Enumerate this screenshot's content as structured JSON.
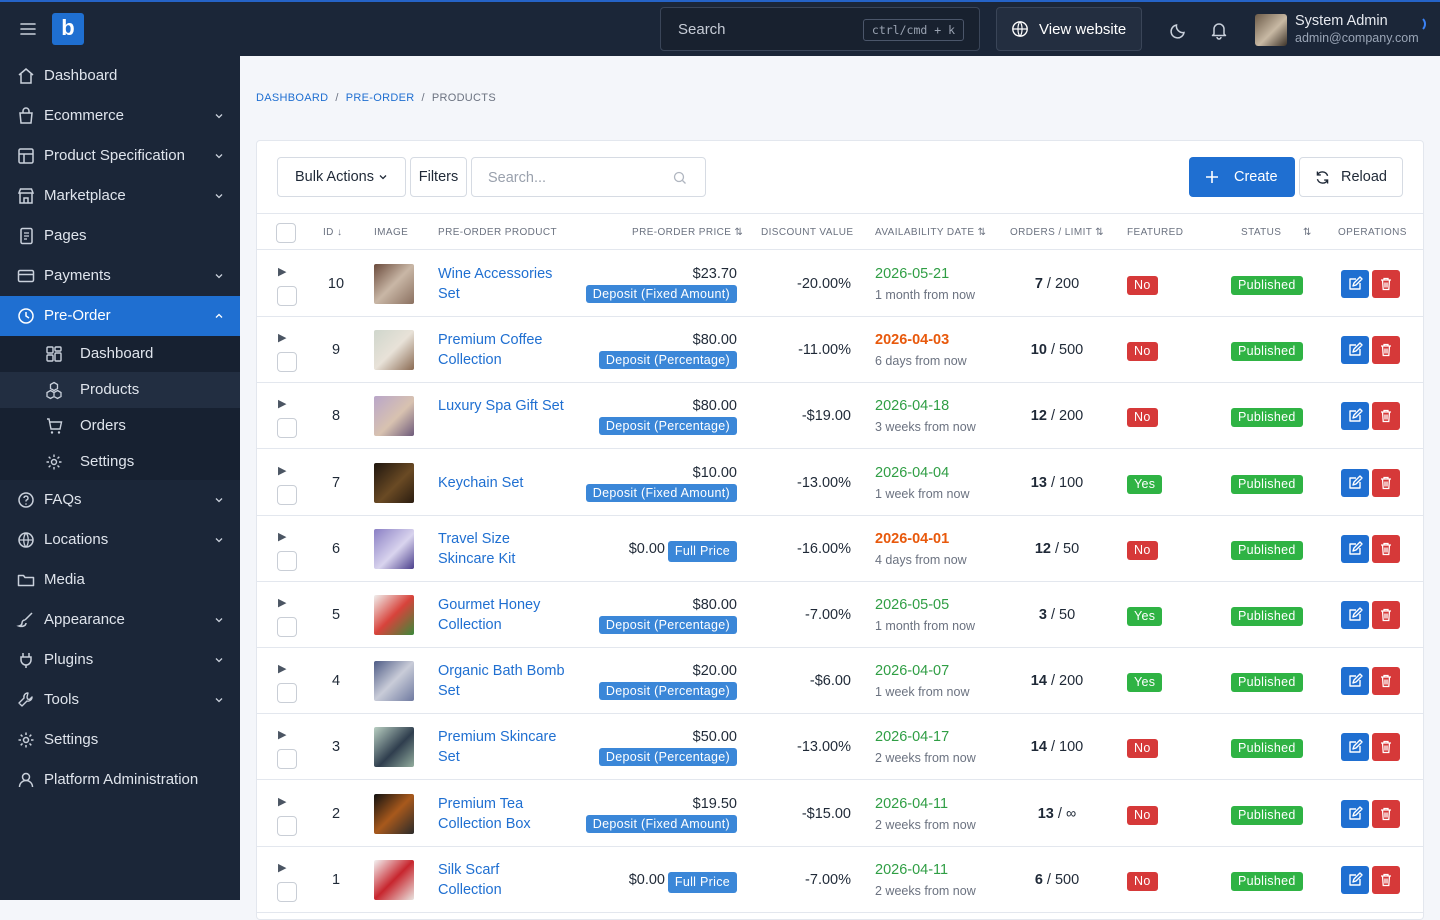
{
  "topbar": {
    "search_placeholder": "Search",
    "search_shortcut": "ctrl/cmd + k",
    "view_website": "View website",
    "user_name": "System Admin",
    "user_email": "admin@company.com"
  },
  "sidebar": {
    "items": [
      {
        "label": "Dashboard",
        "icon": "home-icon"
      },
      {
        "label": "Ecommerce",
        "icon": "shopping-bag-icon"
      },
      {
        "label": "Product Specification",
        "icon": "table-icon"
      },
      {
        "label": "Marketplace",
        "icon": "store-icon"
      },
      {
        "label": "Pages",
        "icon": "pages-icon"
      },
      {
        "label": "Payments",
        "icon": "credit-card-icon"
      },
      {
        "label": "Pre-Order",
        "icon": "clock-icon"
      },
      {
        "label": "FAQs",
        "icon": "help-circle-icon"
      },
      {
        "label": "Locations",
        "icon": "globe-icon"
      },
      {
        "label": "Media",
        "icon": "folder-icon"
      },
      {
        "label": "Appearance",
        "icon": "brush-icon"
      },
      {
        "label": "Plugins",
        "icon": "plug-icon"
      },
      {
        "label": "Tools",
        "icon": "tool-icon"
      },
      {
        "label": "Settings",
        "icon": "gear-icon"
      },
      {
        "label": "Platform Administration",
        "icon": "user-icon"
      }
    ],
    "subitems": [
      {
        "label": "Dashboard",
        "icon": "dashboard-icon"
      },
      {
        "label": "Products",
        "icon": "box-icon"
      },
      {
        "label": "Orders",
        "icon": "cart-icon"
      },
      {
        "label": "Settings",
        "icon": "gear-icon"
      }
    ]
  },
  "breadcrumb": {
    "dashboard": "DASHBOARD",
    "preorder": "PRE-ORDER",
    "current": "PRODUCTS"
  },
  "toolbar": {
    "bulk_actions": "Bulk Actions",
    "filters": "Filters",
    "search_placeholder": "Search...",
    "create": "Create",
    "reload": "Reload"
  },
  "table": {
    "headers": {
      "id": "ID",
      "image": "IMAGE",
      "product": "PRE-ORDER PRODUCT",
      "price": "PRE-ORDER PRICE",
      "discount": "DISCOUNT VALUE",
      "date": "AVAILABILITY DATE",
      "orders": "ORDERS / LIMIT",
      "featured": "FEATURED",
      "status": "STATUS",
      "operations": "OPERATIONS"
    },
    "rows": [
      {
        "id": "10",
        "name": "Wine Accessories Set",
        "price": "$23.70",
        "price_type": "Deposit (Fixed Amount)",
        "discount": "-20.00%",
        "date": "2026-05-21",
        "relative": "1 month from now",
        "date_color": "green",
        "orders": "7",
        "limit": "200",
        "featured": "No",
        "status": "Published"
      },
      {
        "id": "9",
        "name": "Premium Coffee Collection",
        "price": "$80.00",
        "price_type": "Deposit (Percentage)",
        "discount": "-11.00%",
        "date": "2026-04-03",
        "relative": "6 days from now",
        "date_color": "orange",
        "orders": "10",
        "limit": "500",
        "featured": "No",
        "status": "Published"
      },
      {
        "id": "8",
        "name": "Luxury Spa Gift Set",
        "price": "$80.00",
        "price_type": "Deposit (Percentage)",
        "discount": "-$19.00",
        "date": "2026-04-18",
        "relative": "3 weeks from now",
        "date_color": "green",
        "orders": "12",
        "limit": "200",
        "featured": "No",
        "status": "Published"
      },
      {
        "id": "7",
        "name": "Keychain Set",
        "price": "$10.00",
        "price_type": "Deposit (Fixed Amount)",
        "discount": "-13.00%",
        "date": "2026-04-04",
        "relative": "1 week from now",
        "date_color": "green",
        "orders": "13",
        "limit": "100",
        "featured": "Yes",
        "status": "Published"
      },
      {
        "id": "6",
        "name": "Travel Size Skincare Kit",
        "price": "$0.00",
        "price_type": "Full Price",
        "discount": "-16.00%",
        "date": "2026-04-01",
        "relative": "4 days from now",
        "date_color": "orange",
        "orders": "12",
        "limit": "50",
        "featured": "No",
        "status": "Published"
      },
      {
        "id": "5",
        "name": "Gourmet Honey Collection",
        "price": "$80.00",
        "price_type": "Deposit (Percentage)",
        "discount": "-7.00%",
        "date": "2026-05-05",
        "relative": "1 month from now",
        "date_color": "green",
        "orders": "3",
        "limit": "50",
        "featured": "Yes",
        "status": "Published"
      },
      {
        "id": "4",
        "name": "Organic Bath Bomb Set",
        "price": "$20.00",
        "price_type": "Deposit (Percentage)",
        "discount": "-$6.00",
        "date": "2026-04-07",
        "relative": "1 week from now",
        "date_color": "green",
        "orders": "14",
        "limit": "200",
        "featured": "Yes",
        "status": "Published"
      },
      {
        "id": "3",
        "name": "Premium Skincare Set",
        "price": "$50.00",
        "price_type": "Deposit (Percentage)",
        "discount": "-13.00%",
        "date": "2026-04-17",
        "relative": "2 weeks from now",
        "date_color": "green",
        "orders": "14",
        "limit": "100",
        "featured": "No",
        "status": "Published"
      },
      {
        "id": "2",
        "name": "Premium Tea Collection Box",
        "price": "$19.50",
        "price_type": "Deposit (Fixed Amount)",
        "discount": "-$15.00",
        "date": "2026-04-11",
        "relative": "2 weeks from now",
        "date_color": "green",
        "orders": "13",
        "limit": "∞",
        "featured": "No",
        "status": "Published"
      },
      {
        "id": "1",
        "name": "Silk Scarf Collection",
        "price": "$0.00",
        "price_type": "Full Price",
        "discount": "-7.00%",
        "date": "2026-04-11",
        "relative": "2 weeks from now",
        "date_color": "green",
        "orders": "6",
        "limit": "500",
        "featured": "No",
        "status": "Published"
      }
    ]
  },
  "colors": {
    "accent": "#1f6fd1",
    "sidebar_bg": "#1b2638",
    "success": "#2fb344",
    "danger": "#d63939",
    "warning_text": "#e8590c"
  }
}
